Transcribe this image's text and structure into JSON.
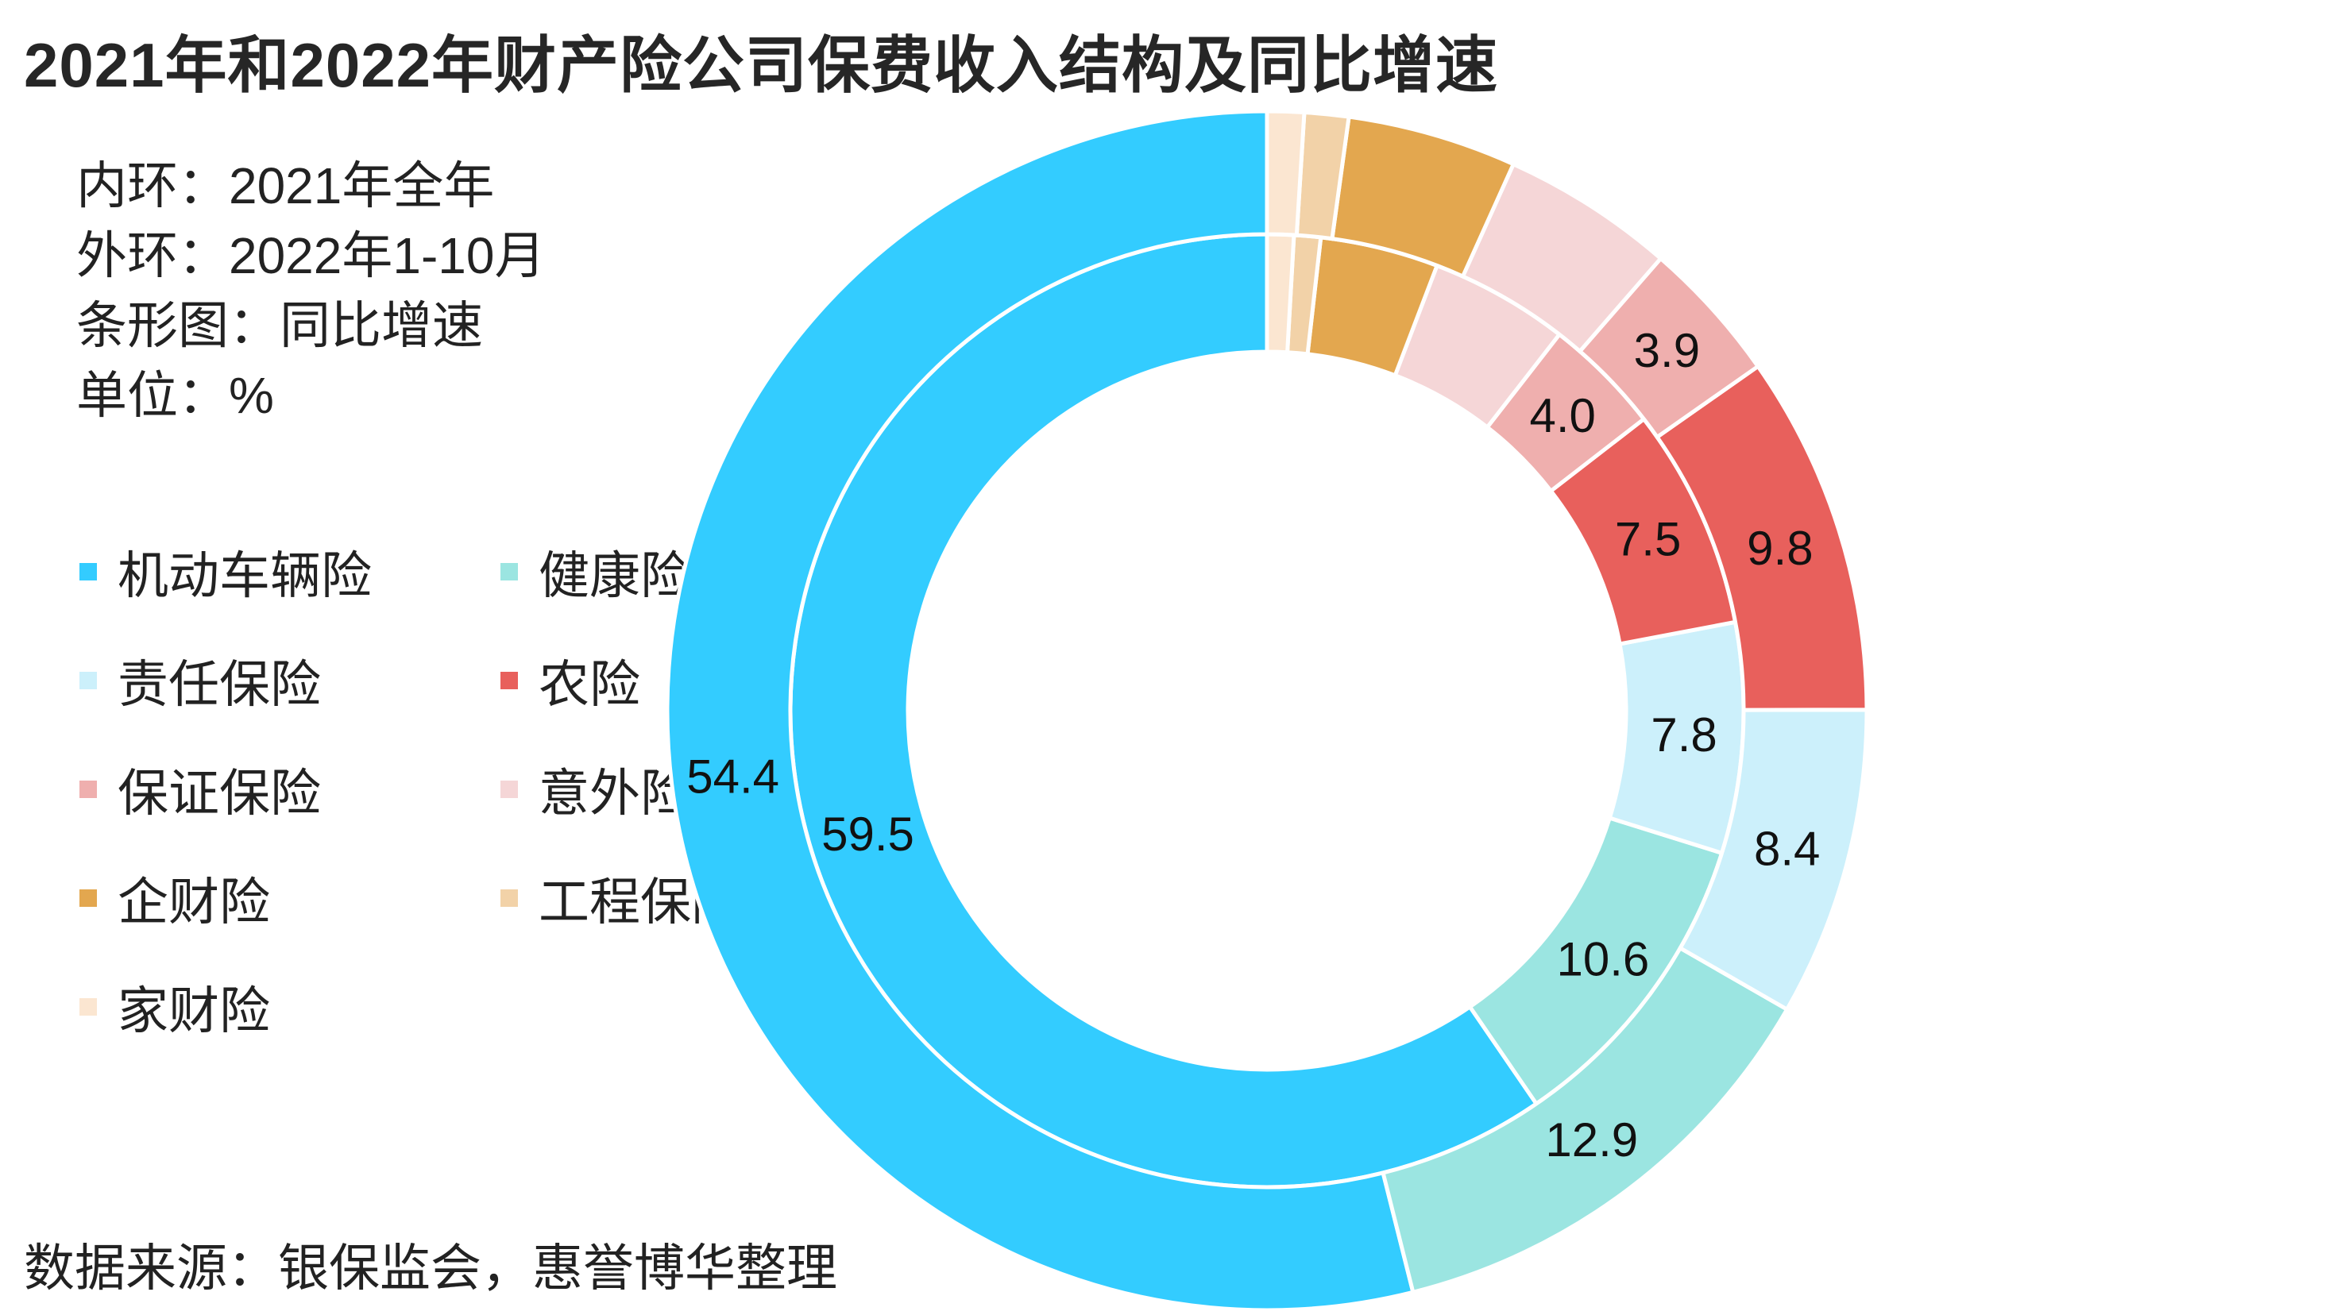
{
  "chart_data": {
    "type": "donut",
    "title": "2021年和2022年财产险公司保费收入结构及同比增速",
    "notes": [
      "内环：2021年全年",
      "外环：2022年1-10月",
      "条形图：同比增速",
      "单位：%"
    ],
    "source": "数据来源：银保监会，惠誉博华整理",
    "legend_placement": "left",
    "categories": [
      "机动车辆险",
      "健康险",
      "责任保险",
      "农险",
      "保证保险",
      "意外险",
      "企财险",
      "工程保险",
      "家财险"
    ],
    "colors": [
      "#33CCFF",
      "#9BE5E1",
      "#CCF0FB",
      "#E8605C",
      "#EFAFAE",
      "#F5D6D7",
      "#E3A74F",
      "#F2D2A8",
      "#FBE6D1"
    ],
    "series": [
      {
        "name": "内环：2021年全年",
        "ring": "inner",
        "values": [
          59.5,
          10.6,
          7.8,
          7.5,
          4.0,
          4.7,
          4.0,
          0.9,
          0.9
        ]
      },
      {
        "name": "外环：2022年1-10月",
        "ring": "outer",
        "values": [
          54.4,
          12.9,
          8.4,
          9.8,
          3.9,
          4.7,
          4.6,
          1.2,
          1.0
        ]
      }
    ],
    "data_labels": {
      "inner": [
        true,
        true,
        true,
        true,
        true,
        false,
        false,
        false,
        false
      ],
      "outer": [
        true,
        true,
        true,
        true,
        true,
        false,
        false,
        false,
        false
      ]
    }
  }
}
